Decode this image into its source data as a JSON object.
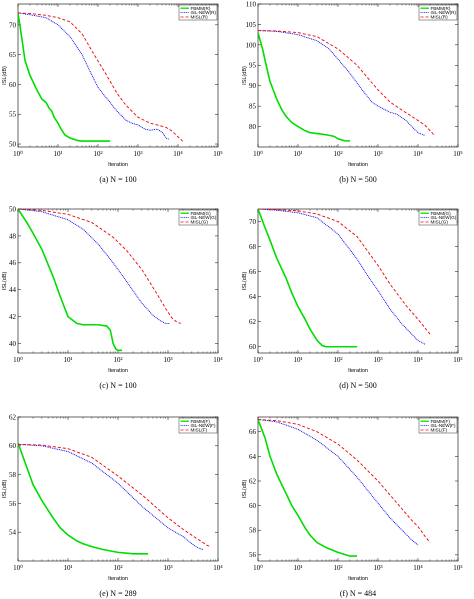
{
  "chart_data": [
    {
      "type": "line",
      "panel": "a",
      "caption": "(a) N = 100",
      "xlabel": "Iteration",
      "ylabel": "ISL(dB)",
      "xscale": "log",
      "xlim": [
        1,
        100000
      ],
      "ylim": [
        49.5,
        73.5
      ],
      "xticks": [
        1,
        10,
        100,
        1000,
        10000,
        100000
      ],
      "xtick_labels": [
        "10⁰",
        "10¹",
        "10²",
        "10³",
        "10⁴",
        "10⁵"
      ],
      "yticks": [
        50,
        55,
        60,
        65,
        70
      ],
      "legend_position": "top-right",
      "series": [
        {
          "name": "FBMM(R)",
          "color": "#00dd00",
          "style": "solid",
          "x": [
            1,
            1.2,
            1.5,
            2,
            3,
            4,
            5,
            6,
            7,
            8,
            10,
            12,
            15,
            20,
            25,
            30,
            40,
            60,
            100,
            150,
            200
          ],
          "y": [
            72,
            68.5,
            64,
            61.5,
            59,
            57.5,
            57,
            56,
            55.5,
            54.5,
            53.5,
            52.5,
            51.5,
            51,
            50.8,
            50.6,
            50.5,
            50.5,
            50.5,
            50.5,
            50.5
          ]
        },
        {
          "name": "ISL-NEW(R)",
          "color": "#0000ee",
          "style": "dotted",
          "x": [
            1,
            2,
            5,
            10,
            20,
            40,
            60,
            100,
            150,
            200,
            300,
            500,
            700,
            1000,
            1500,
            2000,
            3000,
            4000,
            5000,
            6000
          ],
          "y": [
            72,
            71.7,
            71.2,
            70,
            68,
            65,
            62.5,
            59.5,
            58,
            57,
            55.5,
            54,
            53.5,
            53.2,
            52.5,
            52.3,
            52.5,
            52,
            51,
            50.8
          ]
        },
        {
          "name": "MISL(R)",
          "color": "#ee0000",
          "style": "dashed",
          "x": [
            1,
            2,
            5,
            10,
            20,
            40,
            80,
            150,
            300,
            500,
            1000,
            2000,
            3000,
            5000,
            7000,
            10000,
            13000
          ],
          "y": [
            72,
            71.9,
            71.6,
            71.2,
            70.5,
            68.5,
            65,
            62,
            58.5,
            56.5,
            54.5,
            53.5,
            53.2,
            52.8,
            52.2,
            51.2,
            50.5
          ]
        }
      ]
    },
    {
      "type": "line",
      "panel": "b",
      "caption": "(b) N = 500",
      "xlabel": "Iteration",
      "ylabel": "ISL(dB)",
      "xscale": "log",
      "xlim": [
        1,
        100000
      ],
      "ylim": [
        75,
        110
      ],
      "xticks": [
        1,
        10,
        100,
        1000,
        10000,
        100000
      ],
      "xtick_labels": [
        "10⁰",
        "10¹",
        "10²",
        "10³",
        "10⁴",
        "10⁵"
      ],
      "yticks": [
        80,
        85,
        90,
        95,
        100,
        105,
        110
      ],
      "legend_position": "top-right",
      "series": [
        {
          "name": "FBMM(R)",
          "color": "#00dd00",
          "style": "solid",
          "x": [
            1,
            1.3,
            1.6,
            2,
            3,
            4,
            5,
            7,
            10,
            15,
            20,
            30,
            50,
            80,
            100,
            150,
            200
          ],
          "y": [
            103,
            99,
            95,
            91,
            86.5,
            84,
            82.5,
            81,
            80,
            79,
            78.5,
            78.3,
            78,
            77.6,
            77,
            76.5,
            76.5
          ]
        },
        {
          "name": "ISL-NEW(R)",
          "color": "#0000ee",
          "style": "dotted",
          "x": [
            1,
            3,
            10,
            30,
            60,
            100,
            200,
            400,
            700,
            1000,
            2000,
            3000,
            5000,
            7000,
            10000,
            15000
          ],
          "y": [
            103.5,
            103.3,
            102.5,
            101,
            99,
            96.5,
            93,
            89,
            86,
            85,
            83.5,
            83,
            81.5,
            80,
            78.5,
            77.8
          ]
        },
        {
          "name": "MISL(R)",
          "color": "#ee0000",
          "style": "dashed",
          "x": [
            1,
            3,
            10,
            30,
            100,
            300,
            600,
            1000,
            2000,
            4000,
            7000,
            10000,
            15000,
            20000,
            25000
          ],
          "y": [
            103.5,
            103.4,
            103,
            102,
            99,
            95,
            91.5,
            89,
            86,
            84,
            82.5,
            81.5,
            80.3,
            79,
            78
          ]
        }
      ]
    },
    {
      "type": "line",
      "panel": "c",
      "caption": "(c) N = 100",
      "xlabel": "Iteration",
      "ylabel": "ISL(dB)",
      "xscale": "log",
      "xlim": [
        1,
        10000
      ],
      "ylim": [
        39.3,
        50
      ],
      "xticks": [
        1,
        10,
        100,
        1000,
        10000
      ],
      "xtick_labels": [
        "10⁰",
        "10¹",
        "10²",
        "10³",
        "10⁴"
      ],
      "yticks": [
        40,
        42,
        44,
        46,
        48,
        50
      ],
      "legend_position": "top-right",
      "series": [
        {
          "name": "FBMM(G)",
          "color": "#00dd00",
          "style": "solid",
          "x": [
            1,
            1.5,
            2,
            3,
            5,
            7,
            10,
            15,
            20,
            40,
            60,
            70,
            75,
            80,
            85,
            90,
            100,
            120
          ],
          "y": [
            50,
            49,
            48.2,
            47,
            45,
            43.5,
            42,
            41.5,
            41.4,
            41.4,
            41.3,
            41,
            40.5,
            40,
            39.8,
            39.6,
            39.5,
            39.5
          ]
        },
        {
          "name": "ISL-NEW(G)",
          "color": "#0000ee",
          "style": "dotted",
          "x": [
            1,
            3,
            10,
            20,
            40,
            80,
            150,
            300,
            500,
            700,
            900,
            1100
          ],
          "y": [
            50,
            49.8,
            49.2,
            48.5,
            47.4,
            46,
            44.6,
            43,
            42.1,
            41.7,
            41.5,
            41.5
          ]
        },
        {
          "name": "MISL(G)",
          "color": "#ee0000",
          "style": "dashed",
          "x": [
            1,
            3,
            10,
            30,
            80,
            150,
            300,
            600,
            900,
            1200,
            1500,
            1800
          ],
          "y": [
            50,
            49.9,
            49.6,
            49,
            47.9,
            46.9,
            45.5,
            43.7,
            42.6,
            41.9,
            41.6,
            41.5
          ]
        }
      ]
    },
    {
      "type": "line",
      "panel": "d",
      "caption": "(d) N = 500",
      "xlabel": "Iteration",
      "ylabel": "ISL(dB)",
      "xscale": "log",
      "xlim": [
        1,
        100000
      ],
      "ylim": [
        59.5,
        71
      ],
      "xticks": [
        1,
        10,
        100,
        1000,
        10000,
        100000
      ],
      "xtick_labels": [
        "10⁰",
        "10¹",
        "10²",
        "10³",
        "10⁴",
        "10⁵"
      ],
      "yticks": [
        60,
        62,
        64,
        66,
        68,
        70
      ],
      "legend_position": "top-right",
      "series": [
        {
          "name": "FBMM(G)",
          "color": "#00dd00",
          "style": "solid",
          "x": [
            1,
            1.5,
            2,
            3,
            5,
            7,
            10,
            15,
            20,
            30,
            40,
            50,
            100,
            200,
            300
          ],
          "y": [
            71,
            69.5,
            68.5,
            67,
            65.5,
            64.3,
            63.2,
            62.2,
            61.4,
            60.5,
            60.1,
            60,
            60,
            60,
            60
          ]
        },
        {
          "name": "ISL-NEW(G)",
          "color": "#0000ee",
          "style": "dotted",
          "x": [
            1,
            3,
            10,
            30,
            100,
            300,
            600,
            1000,
            2000,
            4000,
            7000,
            10000,
            15000
          ],
          "y": [
            71,
            70.9,
            70.7,
            70.3,
            69,
            67,
            65.5,
            64.5,
            63,
            61.8,
            61,
            60.5,
            60.2
          ]
        },
        {
          "name": "MISL(G)",
          "color": "#ee0000",
          "style": "dashed",
          "x": [
            1,
            3,
            10,
            30,
            100,
            300,
            1000,
            2000,
            5000,
            10000,
            15000,
            20000
          ],
          "y": [
            71,
            70.95,
            70.85,
            70.6,
            70,
            68.8,
            66.5,
            65,
            63.3,
            62.2,
            61.5,
            61
          ]
        }
      ]
    },
    {
      "type": "line",
      "panel": "e",
      "caption": "(e) N = 289",
      "xlabel": "Iteration",
      "ylabel": "ISL(dB)",
      "xscale": "log",
      "xlim": [
        1,
        10000
      ],
      "ylim": [
        52,
        62
      ],
      "xticks": [
        1,
        10,
        100,
        1000,
        10000
      ],
      "xtick_labels": [
        "10⁰",
        "10¹",
        "10²",
        "10³",
        "10⁴"
      ],
      "yticks": [
        54,
        56,
        58,
        60,
        62
      ],
      "legend_position": "top-right",
      "series": [
        {
          "name": "FBMM(F)",
          "color": "#00dd00",
          "style": "solid",
          "x": [
            1,
            1.5,
            2,
            3,
            5,
            7,
            10,
            15,
            20,
            30,
            50,
            100,
            200,
            300,
            400
          ],
          "y": [
            60.2,
            58.5,
            57.3,
            56.2,
            55,
            54.3,
            53.8,
            53.4,
            53.2,
            53,
            52.8,
            52.6,
            52.5,
            52.5,
            52.5
          ]
        },
        {
          "name": "ISL-NEW(F)",
          "color": "#0000ee",
          "style": "dotted",
          "x": [
            1,
            3,
            10,
            30,
            100,
            300,
            1000,
            2000,
            3000,
            4000,
            5000
          ],
          "y": [
            60.1,
            60,
            59.6,
            58.8,
            57.4,
            55.8,
            54.3,
            53.7,
            53.2,
            52.9,
            52.8
          ]
        },
        {
          "name": "MISL(F)",
          "color": "#ee0000",
          "style": "dashed",
          "x": [
            1,
            3,
            10,
            30,
            100,
            300,
            1000,
            2000,
            4000,
            6000,
            7000
          ],
          "y": [
            60.1,
            60.05,
            59.8,
            59.2,
            57.9,
            56.6,
            55,
            54.2,
            53.5,
            53.1,
            53
          ]
        }
      ]
    },
    {
      "type": "line",
      "panel": "f",
      "caption": "(f) N = 484",
      "xlabel": "Iteration",
      "ylabel": "ISL(dB)",
      "xscale": "log",
      "xlim": [
        1,
        100000
      ],
      "ylim": [
        55.5,
        67.2
      ],
      "xticks": [
        1,
        10,
        100,
        1000,
        10000,
        100000
      ],
      "xtick_labels": [
        "10⁰",
        "10¹",
        "10²",
        "10³",
        "10⁴",
        "10⁵"
      ],
      "yticks": [
        56,
        58,
        60,
        62,
        64,
        66
      ],
      "legend_position": "top-right",
      "series": [
        {
          "name": "FBMM(F)",
          "color": "#00dd00",
          "style": "solid",
          "x": [
            1,
            1.5,
            2,
            3,
            5,
            7,
            10,
            15,
            20,
            30,
            50,
            100,
            200,
            300
          ],
          "y": [
            67,
            65.5,
            64,
            62.5,
            61,
            60,
            59.2,
            58.2,
            57.6,
            57,
            56.6,
            56.2,
            55.9,
            55.9
          ]
        },
        {
          "name": "ISL-NEW(F)",
          "color": "#0000ee",
          "style": "dotted",
          "x": [
            1,
            3,
            10,
            30,
            100,
            300,
            1000,
            2000,
            4000,
            7000,
            10000
          ],
          "y": [
            67,
            66.8,
            66.2,
            65.3,
            64,
            62.3,
            60.2,
            59,
            58,
            57.2,
            56.8
          ]
        },
        {
          "name": "MISL(F)",
          "color": "#ee0000",
          "style": "dashed",
          "x": [
            1,
            3,
            10,
            30,
            100,
            300,
            1000,
            3000,
            7000,
            10000,
            15000,
            20000
          ],
          "y": [
            67,
            66.9,
            66.6,
            66,
            65,
            63.7,
            62,
            60.2,
            58.8,
            58.3,
            57.5,
            57
          ]
        }
      ]
    }
  ]
}
